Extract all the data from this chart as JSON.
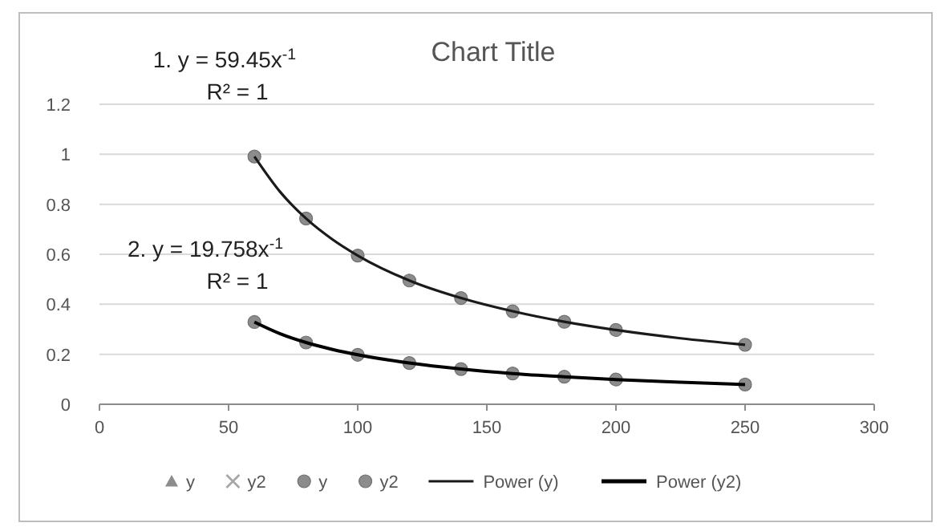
{
  "chart_data": {
    "type": "scatter",
    "title": "Chart Title",
    "xlim": [
      0,
      300
    ],
    "xticks": [
      0,
      50,
      100,
      150,
      200,
      250,
      300
    ],
    "ylim": [
      0,
      1.2
    ],
    "yticks": [
      0,
      0.2,
      0.4,
      0.6,
      0.8,
      1,
      1.2
    ],
    "grid": "y",
    "legend": "bottom",
    "annotations": [
      "1. y = 59.45x$^{-1}$",
      "R² = 1",
      "2. y = 19.758x$^{-1}$",
      "R² = 1"
    ],
    "series": [
      {
        "name": "y",
        "marker": "triangle",
        "color": "#8c8c8c"
      },
      {
        "name": "y2",
        "marker": "cross",
        "color": "#a6a6a6"
      },
      {
        "name": "y",
        "marker": "circle",
        "color": "#8c8c8c",
        "x": [
          60,
          80,
          100,
          120,
          140,
          160,
          180,
          200,
          250
        ],
        "values": [
          0.991,
          0.743,
          0.595,
          0.495,
          0.425,
          0.372,
          0.33,
          0.297,
          0.238
        ]
      },
      {
        "name": "y2",
        "marker": "circle",
        "color": "#8c8c8c",
        "x": [
          60,
          80,
          100,
          120,
          140,
          160,
          180,
          200,
          250
        ],
        "values": [
          0.329,
          0.247,
          0.198,
          0.165,
          0.141,
          0.123,
          0.11,
          0.099,
          0.079
        ]
      },
      {
        "name": "Power (y)",
        "type": "line",
        "marker": "none",
        "line_style": "solid",
        "color": "#1a1a1a",
        "x": [
          60,
          70,
          80,
          90,
          100,
          120,
          140,
          160,
          180,
          200,
          225,
          250
        ],
        "values": [
          0.991,
          0.849,
          0.743,
          0.661,
          0.595,
          0.495,
          0.425,
          0.372,
          0.33,
          0.297,
          0.264,
          0.238
        ]
      },
      {
        "name": "Power (y2)",
        "type": "line",
        "marker": "none",
        "line_style": "solid",
        "color": "#000000",
        "x": [
          60,
          70,
          80,
          90,
          100,
          120,
          140,
          160,
          180,
          200,
          225,
          250
        ],
        "values": [
          0.329,
          0.282,
          0.247,
          0.22,
          0.198,
          0.165,
          0.141,
          0.123,
          0.11,
          0.099,
          0.088,
          0.079
        ]
      }
    ]
  }
}
